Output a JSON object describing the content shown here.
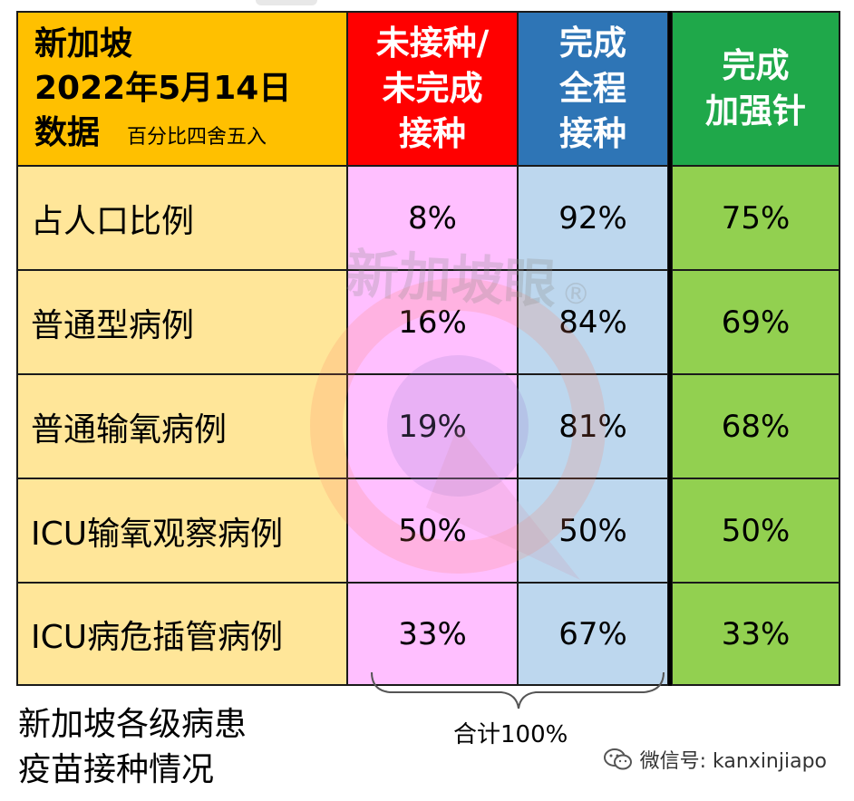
{
  "header": {
    "title_line1": "新加坡",
    "title_line2": "2022年5月14日",
    "title_line3": "数据",
    "rounding_note": "百分比四舍五入",
    "col_unvaccinated": [
      "未接种/",
      "未完成",
      "接种"
    ],
    "col_full": [
      "完成",
      "全程",
      "接种"
    ],
    "col_booster": [
      "完成",
      "加强针"
    ]
  },
  "rows": [
    {
      "label": "占人口比例",
      "unvaccinated": "8%",
      "full": "92%",
      "booster": "75%"
    },
    {
      "label": "普通型病例",
      "unvaccinated": "16%",
      "full": "84%",
      "booster": "69%"
    },
    {
      "label": "普通输氧病例",
      "unvaccinated": "19%",
      "full": "81%",
      "booster": "68%"
    },
    {
      "label": "ICU输氧观察病例",
      "unvaccinated": "50%",
      "full": "50%",
      "booster": "50%"
    },
    {
      "label": "ICU病危插管病例",
      "unvaccinated": "33%",
      "full": "67%",
      "booster": "33%"
    }
  ],
  "total_note": "合计100%",
  "caption": [
    "新加坡各级病患",
    "疫苗接种情况"
  ],
  "watermark": {
    "text": "新加坡眼",
    "mark": "®",
    "icon": "magnifier-logo-icon"
  },
  "wechat": {
    "icon": "wechat-icon",
    "text": "微信号: kanxinjiapo"
  },
  "colors": {
    "header_title_bg": "#ffc000",
    "unvaccinated_header_bg": "#ff0000",
    "full_header_bg": "#2e75b6",
    "booster_header_bg": "#1fa84a",
    "label_bg": "#ffe699",
    "unvaccinated_bg": "#ffbfff",
    "full_bg": "#bdd7ee",
    "booster_bg": "#92d050"
  }
}
